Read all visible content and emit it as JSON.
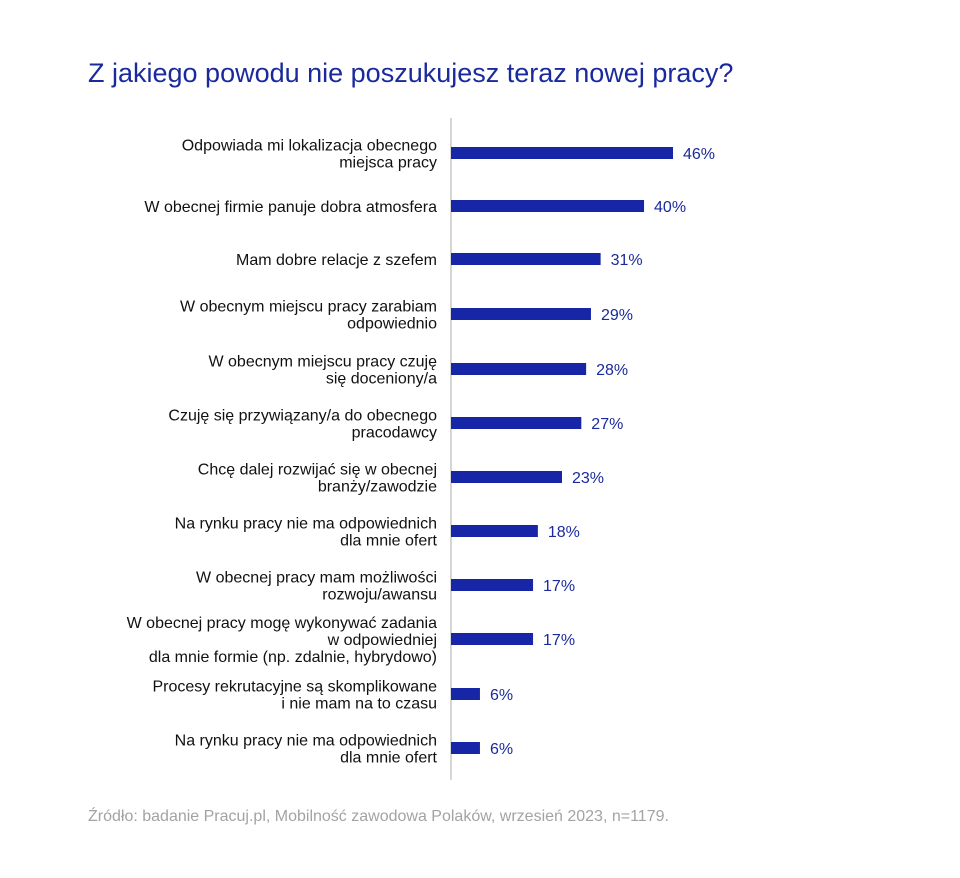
{
  "title": "Z jakiego powodu nie poszukujesz teraz nowej pracy?",
  "source": "Źródło: badanie Pracuj.pl, Mobilność zawodowa Polaków, wrzesień 2023, n=1179.",
  "colors": {
    "bar": "#1626a6",
    "title": "#1a2a9c",
    "value_label": "#1a2a9c",
    "category_label": "#111111",
    "axis": "#c8c8c8",
    "source": "#a3a3a3"
  },
  "chart_data": {
    "type": "bar",
    "orientation": "horizontal",
    "title": "Z jakiego powodu nie poszukujesz teraz nowej pracy?",
    "categories": [
      [
        "Odpowiada mi lokalizacja obecnego",
        "miejsca pracy"
      ],
      [
        "W obecnej firmie panuje dobra atmosfera"
      ],
      [
        "Mam dobre relacje z szefem"
      ],
      [
        "W obecnym miejscu pracy zarabiam",
        "odpowiednio"
      ],
      [
        "W obecnym miejscu pracy czuję",
        "się doceniony/a"
      ],
      [
        "Czuję się przywiązany/a do obecnego",
        "pracodawcy"
      ],
      [
        "Chcę dalej rozwijać się w obecnej",
        "branży/zawodzie"
      ],
      [
        "Na rynku pracy nie ma odpowiednich",
        "dla mnie ofert"
      ],
      [
        "W obecnej pracy mam możliwości",
        "rozwoju/awansu"
      ],
      [
        "W obecnej pracy mogę wykonywać zadania",
        "w odpowiedniej",
        "dla mnie formie (np. zdalnie, hybrydowo)"
      ],
      [
        "Procesy rekrutacyjne są skomplikowane",
        "i nie mam na to czasu"
      ],
      [
        "Na rynku pracy nie ma odpowiednich",
        "dla mnie ofert"
      ]
    ],
    "values": [
      46,
      40,
      31,
      29,
      28,
      27,
      23,
      18,
      17,
      17,
      6,
      6
    ],
    "value_labels": [
      "46%",
      "40%",
      "31%",
      "29%",
      "28%",
      "27%",
      "23%",
      "18%",
      "17%",
      "17%",
      "6%",
      "6%"
    ],
    "unit": "%",
    "xlim": [
      0,
      46
    ],
    "grid": false,
    "legend": "none"
  }
}
